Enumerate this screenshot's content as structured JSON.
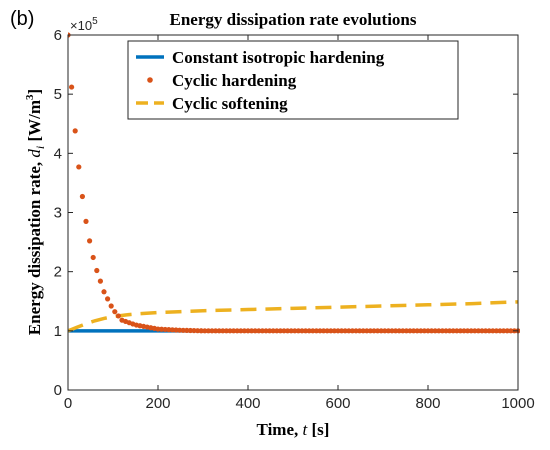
{
  "panel_label": "(b)",
  "chart_data": {
    "type": "line",
    "title": "Energy dissipation rate evolutions",
    "xlabel_prefix": "Time, ",
    "xlabel_var": "t",
    "xlabel_suffix": " [s]",
    "ylabel_prefix": "Energy dissipation rate, ",
    "ylabel_var": "d",
    "ylabel_sub": "i",
    "ylabel_suffix": " [W/m",
    "ylabel_sup": "3",
    "ylabel_close": "]",
    "y_exponent_base": "×10",
    "y_exponent_power": "5",
    "xlim": [
      0,
      1000
    ],
    "ylim": [
      0,
      6
    ],
    "y_scale_factor": 100000,
    "x_ticks": [
      "0",
      "200",
      "400",
      "600",
      "800",
      "1000"
    ],
    "y_ticks": [
      "0",
      "1",
      "2",
      "3",
      "4",
      "5",
      "6"
    ],
    "legend_position": "top-center",
    "series": [
      {
        "name": "Constant isotropic hardening",
        "style": "solid",
        "color": "#0072BD",
        "x": [
          0,
          1000
        ],
        "y": [
          1.0,
          1.0
        ]
      },
      {
        "name": "Cyclic hardening",
        "style": "dots",
        "color": "#D95319",
        "x_start": 0,
        "x_step": 8,
        "x_end": 1000,
        "model": "y = 1 + 5*exp(-x/50)",
        "y_sampled": {
          "x": [
            0,
            8,
            16,
            24,
            32,
            40,
            48,
            56,
            64,
            80,
            100,
            120,
            150,
            200,
            250,
            300,
            1000
          ],
          "y": [
            6.0,
            5.12,
            4.38,
            3.77,
            3.27,
            2.85,
            2.52,
            2.24,
            2.02,
            1.66,
            1.36,
            1.18,
            1.1,
            1.03,
            1.01,
            1.0,
            1.0
          ]
        }
      },
      {
        "name": "Cyclic softening",
        "style": "dashed",
        "color": "#EDB120",
        "x": [
          0,
          20,
          40,
          60,
          80,
          100,
          130,
          160,
          200,
          300,
          400,
          500,
          600,
          700,
          800,
          900,
          1000
        ],
        "y": [
          1.0,
          1.06,
          1.12,
          1.17,
          1.21,
          1.24,
          1.27,
          1.29,
          1.31,
          1.34,
          1.36,
          1.38,
          1.4,
          1.42,
          1.44,
          1.46,
          1.49
        ]
      }
    ]
  }
}
